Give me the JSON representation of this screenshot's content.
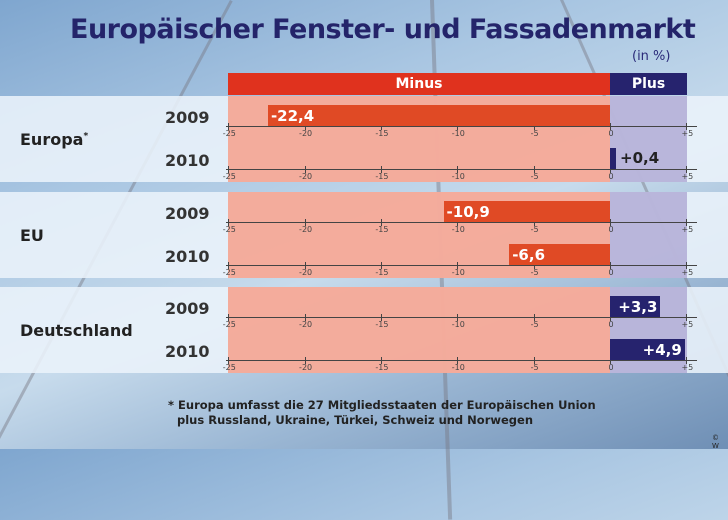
{
  "title": "Europäischer Fenster- und Fassadenmarkt",
  "unit": "(in %)",
  "header": {
    "minus": "Minus",
    "plus": "Plus"
  },
  "ticks": [
    "-25",
    "-20",
    "-15",
    "-10",
    "-5",
    "0",
    "+5"
  ],
  "regions": [
    {
      "name": "Europa",
      "footnote_mark": "*",
      "rows": [
        {
          "year": "2009",
          "value": -22.4,
          "label": "-22,4"
        },
        {
          "year": "2010",
          "value": 0.4,
          "label": "+0,4"
        }
      ]
    },
    {
      "name": "EU",
      "rows": [
        {
          "year": "2009",
          "value": -10.9,
          "label": "-10,9"
        },
        {
          "year": "2010",
          "value": -6.6,
          "label": "-6,6"
        }
      ]
    },
    {
      "name": "Deutschland",
      "rows": [
        {
          "year": "2009",
          "value": 3.3,
          "label": "+3,3"
        },
        {
          "year": "2010",
          "value": 4.9,
          "label": "+4,9"
        }
      ]
    }
  ],
  "footnote": {
    "mark": "*",
    "line1": "Europa umfasst die 27 Mitgliedsstaaten der Europäischen Union",
    "line2": "plus Russland, Ukraine, Türkei, Schweiz und Norwegen"
  },
  "copyright": "© W",
  "colors": {
    "minus": "#e0321e",
    "plus": "#26236e",
    "title": "#24246a"
  },
  "chart_data": {
    "type": "bar",
    "orientation": "horizontal",
    "title": "Europäischer Fenster- und Fassadenmarkt",
    "subtitle": "(in %)",
    "categories": [
      "Europa 2009",
      "Europa 2010",
      "EU 2009",
      "EU 2010",
      "Deutschland 2009",
      "Deutschland 2010"
    ],
    "values": [
      -22.4,
      0.4,
      -10.9,
      -6.6,
      3.3,
      4.9
    ],
    "groups": [
      "Europa",
      "EU",
      "Deutschland"
    ],
    "series": [
      {
        "name": "2009",
        "values": [
          -22.4,
          -10.9,
          3.3
        ]
      },
      {
        "name": "2010",
        "values": [
          0.4,
          -6.6,
          4.9
        ]
      }
    ],
    "xlim": [
      -25,
      5
    ],
    "xticks": [
      -25,
      -20,
      -15,
      -10,
      -5,
      0,
      5
    ],
    "xlabel": "",
    "ylabel": "",
    "legend": [
      "Minus",
      "Plus"
    ],
    "annotations": [
      "* Europa umfasst die 27 Mitgliedsstaaten der Europäischen Union plus Russland, Ukraine, Türkei, Schweiz und Norwegen"
    ],
    "grid": false
  }
}
